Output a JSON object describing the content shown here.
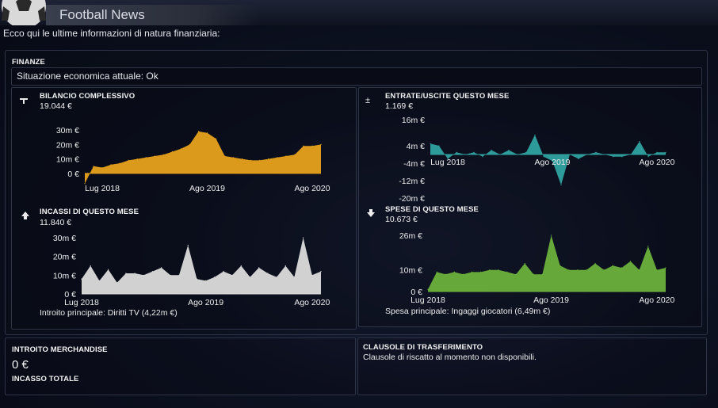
{
  "header": {
    "title": "Football News"
  },
  "intro": "Ecco qui le ultime informazioni di natura finanziaria:",
  "finanze": {
    "title": "FINANZE",
    "status": "Situazione economica attuale: Ok"
  },
  "bilancio": {
    "title": "BILANCIO COMPLESSIVO",
    "value": "19.044 €"
  },
  "entrate_uscite": {
    "title": "ENTRATE/USCITE QUESTO MESE",
    "value": "1.169 €"
  },
  "incassi": {
    "title": "INCASSI DI QUESTO MESE",
    "value": "11.840 €",
    "note": "Introito principale:  Diritti TV (4,22m €)"
  },
  "spese": {
    "title": "SPESE DI QUESTO MESE",
    "value": "10.673 €",
    "note": "Spesa principale:  Ingaggi giocatori (6,49m €)"
  },
  "merchandise": {
    "title": "INTROITO MERCHANDISE",
    "value": "0 €",
    "total_label": "INCASSO TOTALE"
  },
  "clausole": {
    "title": "CLAUSOLE DI TRASFERIMENTO",
    "text": "Clausole di riscatto al momento non disponibili."
  },
  "colors": {
    "bilancio": "#e8a21c",
    "entrate": "#2fa3a0",
    "incassi": "#dcdcdc",
    "spese": "#6cb13c"
  },
  "chart_data": [
    {
      "type": "area",
      "id": "bilancio",
      "title": "BILANCIO COMPLESSIVO",
      "ylim": [
        -5,
        35
      ],
      "yticks": [
        0,
        10,
        20,
        30
      ],
      "ytick_labels": [
        "0 €",
        "10m €",
        "20m €",
        "30m €"
      ],
      "xtick_labels": [
        "Lug 2018",
        "Ago 2019",
        "Ago 2020"
      ],
      "xtick_index": [
        2,
        14,
        26
      ],
      "values": [
        -7,
        5,
        4,
        6,
        7,
        9,
        10,
        11,
        12,
        13,
        15,
        17,
        20,
        29,
        28,
        24,
        12,
        11,
        10,
        9,
        9,
        10,
        11,
        12,
        13,
        19,
        19,
        20
      ]
    },
    {
      "type": "area",
      "id": "entrate",
      "title": "ENTRATE/USCITE QUESTO MESE",
      "ylim": [
        -20,
        16
      ],
      "yticks": [
        16,
        4,
        -4,
        -12,
        -20
      ],
      "ytick_labels": [
        "16m €",
        "4m €",
        "-4m €",
        "-12m €",
        "-20m €"
      ],
      "xtick_labels": [
        "Lug 2018",
        "Ago 2019",
        "Ago 2020"
      ],
      "xtick_index": [
        2,
        14,
        26
      ],
      "values": [
        5,
        4,
        -2,
        1,
        0,
        1,
        -1,
        2,
        0,
        2,
        0,
        1,
        9,
        -1,
        -3,
        -14,
        0,
        -2,
        0,
        1,
        0,
        -1,
        -1,
        0,
        6,
        -1,
        1,
        1
      ]
    },
    {
      "type": "area",
      "id": "incassi",
      "title": "INCASSI DI QUESTO MESE",
      "ylim": [
        0,
        30
      ],
      "yticks": [
        0,
        10,
        20,
        30
      ],
      "ytick_labels": [
        "0 €",
        "10m €",
        "20m €",
        "30m €"
      ],
      "xtick_labels": [
        "Lug 2018",
        "Ago 2019",
        "Ago 2020"
      ],
      "xtick_index": [
        0,
        14,
        26
      ],
      "values": [
        8,
        15,
        7,
        13,
        6,
        11,
        11,
        10,
        12,
        14,
        10,
        10,
        26,
        8,
        7,
        9,
        12,
        10,
        15,
        9,
        14,
        11,
        9,
        15,
        9,
        30,
        10,
        12
      ]
    },
    {
      "type": "area",
      "id": "spese",
      "title": "SPESE DI QUESTO MESE",
      "ylim": [
        0,
        26
      ],
      "yticks": [
        0,
        10,
        26
      ],
      "ytick_labels": [
        "0 €",
        "10m €",
        "26m €"
      ],
      "xtick_labels": [
        "Lug 2018",
        "Ago 2019",
        "Ago 2020"
      ],
      "xtick_index": [
        0,
        14,
        26
      ],
      "values": [
        1,
        9,
        8,
        9,
        8,
        9,
        9,
        10,
        10,
        9,
        8,
        13,
        8,
        8,
        26,
        12,
        10,
        10,
        10,
        13,
        10,
        12,
        11,
        14,
        10,
        21,
        10,
        11
      ]
    }
  ]
}
